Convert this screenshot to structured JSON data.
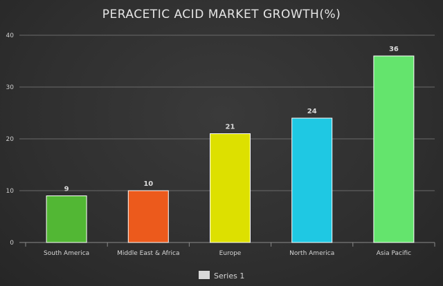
{
  "chart_data": {
    "type": "bar",
    "title": "PERACETIC ACID MARKET GROWTH(%)",
    "categories": [
      "South America",
      "Middle East & Africa",
      "Europe",
      "North America",
      "Asia Pacific"
    ],
    "series": [
      {
        "name": "Series 1",
        "values": [
          9,
          10,
          21,
          24,
          36
        ]
      }
    ],
    "bar_colors": [
      "#52b734",
      "#ec5a1c",
      "#dde000",
      "#1fc8e3",
      "#64e46d"
    ],
    "ylim": [
      0,
      40
    ],
    "yticks": [
      0,
      10,
      20,
      30,
      40
    ],
    "grid": true,
    "legend_position": "bottom",
    "legend_color": "#d9d9d9"
  }
}
